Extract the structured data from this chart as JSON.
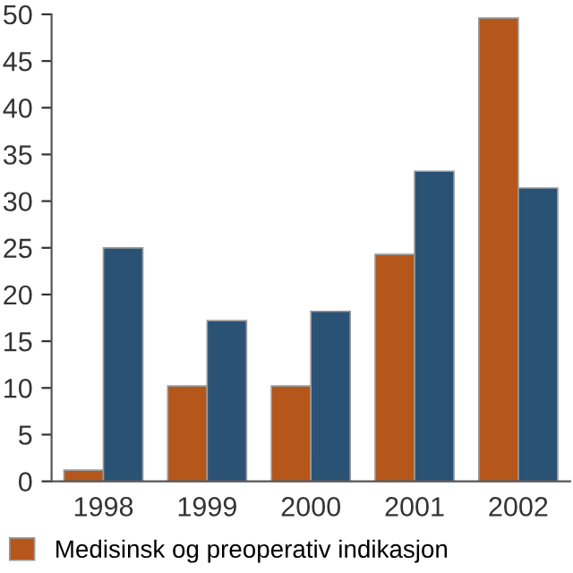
{
  "chart_data": {
    "type": "bar",
    "categories": [
      "1998",
      "1999",
      "2000",
      "2001",
      "2002"
    ],
    "series": [
      {
        "name": "Medisinsk og preoperativ indikasjon",
        "color": "#b5561a",
        "values": [
          1.2,
          10.2,
          10.2,
          24.3,
          49.6
        ]
      },
      {
        "color": "#2a5275",
        "values": [
          25,
          17.2,
          18.2,
          33.2,
          31.4
        ]
      }
    ],
    "ylim": [
      0,
      50
    ],
    "yticks": [
      0,
      5,
      10,
      15,
      20,
      25,
      30,
      35,
      40,
      45,
      50
    ],
    "grid": false,
    "legend": "bottom"
  }
}
